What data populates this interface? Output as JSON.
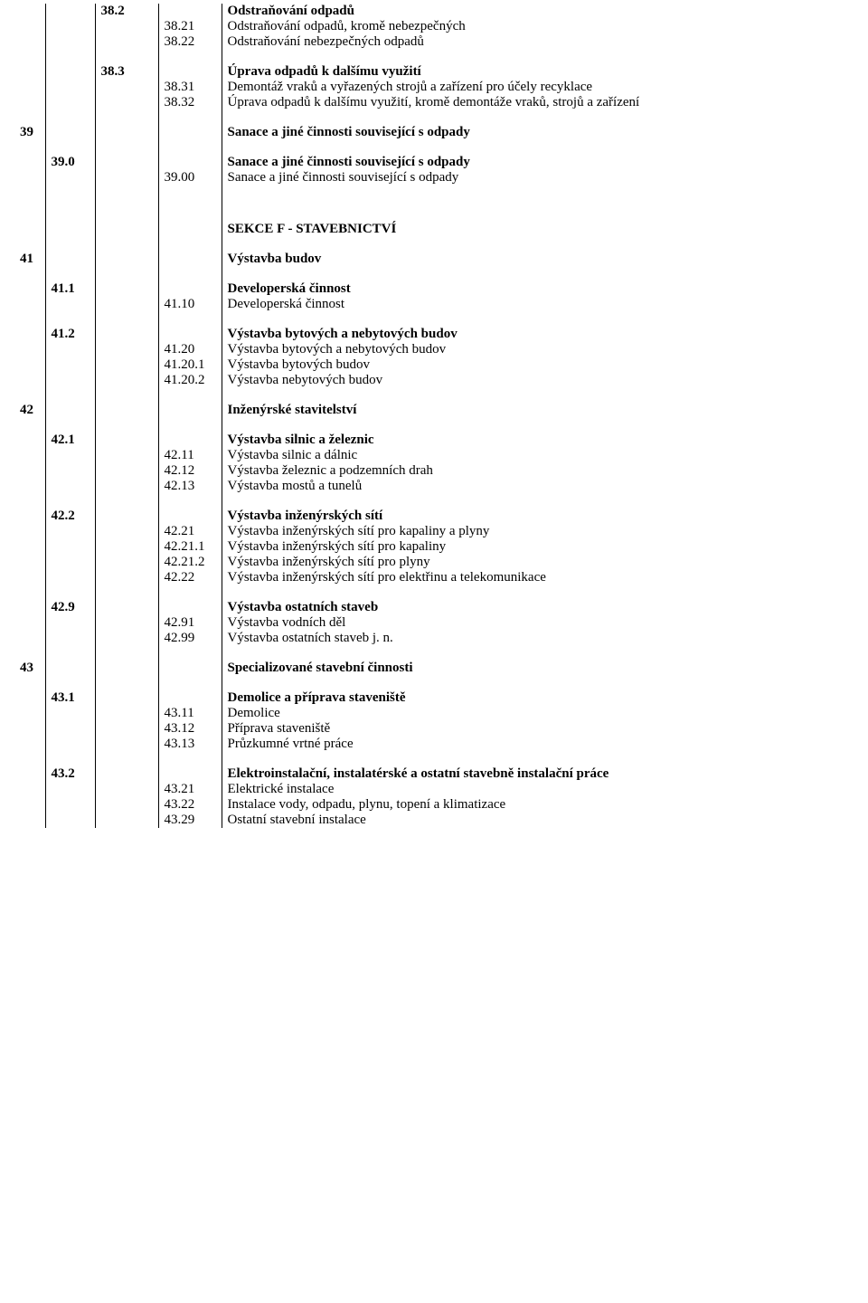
{
  "rows": [
    {
      "cols": [
        "",
        "",
        "38.2",
        "",
        "Odstraňování odpadů"
      ],
      "bold": [
        false,
        false,
        true,
        false,
        true
      ]
    },
    {
      "cols": [
        "",
        "",
        "",
        "38.21",
        "Odstraňování odpadů, kromě nebezpečných"
      ]
    },
    {
      "cols": [
        "",
        "",
        "",
        "38.22",
        "Odstraňování nebezpečných odpadů"
      ]
    },
    {
      "spacer": true
    },
    {
      "cols": [
        "",
        "",
        "38.3",
        "",
        "Úprava odpadů k dalšímu využití"
      ],
      "bold": [
        false,
        false,
        true,
        false,
        true
      ]
    },
    {
      "cols": [
        "",
        "",
        "",
        "38.31",
        "Demontáž vraků a vyřazených strojů a zařízení pro účely recyklace"
      ]
    },
    {
      "cols": [
        "",
        "",
        "",
        "38.32",
        "Úprava odpadů k dalšímu využití, kromě demontáže vraků, strojů a zařízení"
      ]
    },
    {
      "spacer": true
    },
    {
      "cols": [
        "39",
        "",
        "",
        "",
        "Sanace a jiné činnosti související s odpady"
      ],
      "bold": [
        true,
        false,
        false,
        false,
        true
      ]
    },
    {
      "spacer": true
    },
    {
      "cols": [
        "",
        "39.0",
        "",
        "",
        "Sanace a jiné činnosti související s odpady"
      ],
      "bold": [
        false,
        true,
        false,
        false,
        true
      ]
    },
    {
      "cols": [
        "",
        "",
        "",
        "39.00",
        "Sanace a jiné činnosti související s odpady"
      ]
    },
    {
      "spacerBig": true
    },
    {
      "cols": [
        "",
        "",
        "",
        "",
        "SEKCE F - STAVEBNICTVÍ"
      ],
      "bold": [
        false,
        false,
        false,
        false,
        true
      ]
    },
    {
      "spacer": true
    },
    {
      "cols": [
        "41",
        "",
        "",
        "",
        "Výstavba budov"
      ],
      "bold": [
        true,
        false,
        false,
        false,
        true
      ]
    },
    {
      "spacer": true
    },
    {
      "cols": [
        "",
        "41.1",
        "",
        "",
        "Developerská činnost"
      ],
      "bold": [
        false,
        true,
        false,
        false,
        true
      ]
    },
    {
      "cols": [
        "",
        "",
        "",
        "41.10",
        "Developerská činnost"
      ]
    },
    {
      "spacer": true
    },
    {
      "cols": [
        "",
        "41.2",
        "",
        "",
        "Výstavba bytových a nebytových budov"
      ],
      "bold": [
        false,
        true,
        false,
        false,
        true
      ]
    },
    {
      "cols": [
        "",
        "",
        "",
        "41.20",
        "Výstavba bytových a nebytových budov"
      ]
    },
    {
      "cols": [
        "",
        "",
        "",
        "41.20.1",
        "Výstavba bytových budov"
      ]
    },
    {
      "cols": [
        "",
        "",
        "",
        "41.20.2",
        "Výstavba nebytových budov"
      ]
    },
    {
      "spacer": true
    },
    {
      "cols": [
        "42",
        "",
        "",
        "",
        "Inženýrské stavitelství"
      ],
      "bold": [
        true,
        false,
        false,
        false,
        true
      ]
    },
    {
      "spacer": true
    },
    {
      "cols": [
        "",
        "42.1",
        "",
        "",
        "Výstavba silnic a železnic"
      ],
      "bold": [
        false,
        true,
        false,
        false,
        true
      ]
    },
    {
      "cols": [
        "",
        "",
        "",
        "42.11",
        "Výstavba silnic a dálnic"
      ]
    },
    {
      "cols": [
        "",
        "",
        "",
        "42.12",
        "Výstavba železnic a podzemních drah"
      ]
    },
    {
      "cols": [
        "",
        "",
        "",
        "42.13",
        "Výstavba mostů a tunelů"
      ]
    },
    {
      "spacer": true
    },
    {
      "cols": [
        "",
        "42.2",
        "",
        "",
        "Výstavba inženýrských sítí"
      ],
      "bold": [
        false,
        true,
        false,
        false,
        true
      ]
    },
    {
      "cols": [
        "",
        "",
        "",
        "42.21",
        "Výstavba inženýrských sítí pro kapaliny a plyny"
      ]
    },
    {
      "cols": [
        "",
        "",
        "",
        "42.21.1",
        "Výstavba inženýrských sítí pro kapaliny"
      ]
    },
    {
      "cols": [
        "",
        "",
        "",
        "42.21.2",
        "Výstavba inženýrských sítí pro plyny"
      ]
    },
    {
      "cols": [
        "",
        "",
        "",
        "42.22",
        "Výstavba inženýrských sítí pro elektřinu a telekomunikace"
      ]
    },
    {
      "spacer": true
    },
    {
      "cols": [
        "",
        "42.9",
        "",
        "",
        "Výstavba ostatních staveb"
      ],
      "bold": [
        false,
        true,
        false,
        false,
        true
      ]
    },
    {
      "cols": [
        "",
        "",
        "",
        "42.91",
        "Výstavba vodních děl"
      ]
    },
    {
      "cols": [
        "",
        "",
        "",
        "42.99",
        "Výstavba ostatních staveb j. n."
      ]
    },
    {
      "spacer": true
    },
    {
      "cols": [
        "43",
        "",
        "",
        "",
        "Specializované stavební činnosti"
      ],
      "bold": [
        true,
        false,
        false,
        false,
        true
      ]
    },
    {
      "spacer": true
    },
    {
      "cols": [
        "",
        "43.1",
        "",
        "",
        "Demolice a příprava staveniště"
      ],
      "bold": [
        false,
        true,
        false,
        false,
        true
      ]
    },
    {
      "cols": [
        "",
        "",
        "",
        "43.11",
        "Demolice"
      ]
    },
    {
      "cols": [
        "",
        "",
        "",
        "43.12",
        "Příprava staveniště"
      ]
    },
    {
      "cols": [
        "",
        "",
        "",
        "43.13",
        "Průzkumné vrtné práce"
      ]
    },
    {
      "spacer": true
    },
    {
      "cols": [
        "",
        "43.2",
        "",
        "",
        "Elektroinstalační, instalatérské a ostatní stavebně instalační práce"
      ],
      "bold": [
        false,
        true,
        false,
        false,
        true
      ]
    },
    {
      "cols": [
        "",
        "",
        "",
        "43.21",
        "Elektrické instalace"
      ]
    },
    {
      "cols": [
        "",
        "",
        "",
        "43.22",
        "Instalace vody, odpadu, plynu, topení a klimatizace"
      ]
    },
    {
      "cols": [
        "",
        "",
        "",
        "43.29",
        "Ostatní stavební instalace"
      ]
    }
  ]
}
